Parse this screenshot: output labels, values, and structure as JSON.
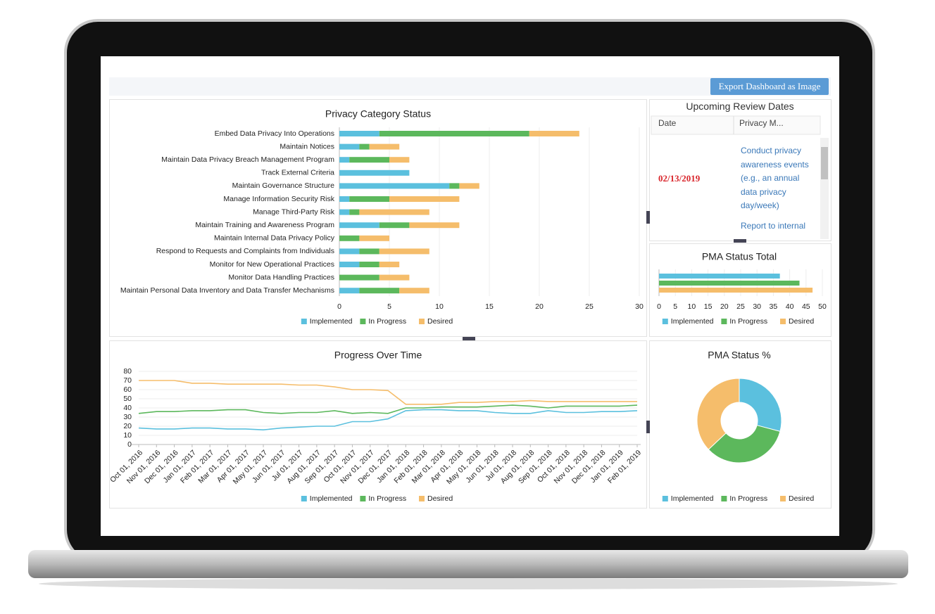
{
  "toolbar": {
    "button": "Export Dashboard as Image"
  },
  "review_table": {
    "title": "Upcoming Review Dates",
    "columns": [
      "Date",
      "Privacy M..."
    ],
    "rows": [
      [
        "02/13/2019",
        [
          "Conduct privacy awareness events (e.g., an annual data privacy day/week)",
          "Report to internal"
        ]
      ]
    ]
  },
  "chart_data": [
    {
      "type": "stacked-hbar",
      "title": "Privacy Category Status",
      "categories": [
        "Embed Data Privacy Into Operations",
        "Maintain Notices",
        "Maintain Data Privacy Breach Management Program",
        "Track External Criteria",
        "Maintain Governance Structure",
        "Manage Information Security Risk",
        "Manage Third-Party Risk",
        "Maintain Training and Awareness Program",
        "Maintain Internal Data Privacy Policy",
        "Respond to Requests and Complaints from Individuals",
        "Monitor for New Operational Practices",
        "Monitor Data Handling Practices",
        "Maintain Personal Data Inventory and Data Transfer Mechanisms"
      ],
      "series": [
        {
          "name": "Implemented",
          "color": "#5bc0de",
          "values": [
            4,
            2,
            1,
            7,
            11,
            1,
            1,
            4,
            0,
            2,
            2,
            0,
            2
          ]
        },
        {
          "name": "In Progress",
          "color": "#5cb85c",
          "values": [
            15,
            1,
            4,
            0,
            1,
            4,
            1,
            3,
            2,
            2,
            2,
            4,
            4
          ]
        },
        {
          "name": "Desired",
          "color": "#f5bd6b",
          "values": [
            5,
            3,
            2,
            0,
            2,
            7,
            7,
            5,
            3,
            5,
            2,
            3,
            3
          ]
        }
      ],
      "xlim": [
        0,
        30
      ],
      "xticks": [
        0,
        5,
        10,
        15,
        20,
        25,
        30
      ],
      "grid": true
    },
    {
      "type": "hbar",
      "title": "PMA Status Total",
      "series": [
        {
          "name": "Implemented",
          "color": "#5bc0de",
          "values": [
            37
          ]
        },
        {
          "name": "In Progress",
          "color": "#5cb85c",
          "values": [
            43
          ]
        },
        {
          "name": "Desired",
          "color": "#f5bd6b",
          "values": [
            47
          ]
        }
      ],
      "xlim": [
        0,
        50
      ],
      "xticks": [
        0,
        5,
        10,
        15,
        20,
        25,
        30,
        35,
        40,
        45,
        50
      ],
      "grid": true
    },
    {
      "type": "line",
      "title": "Progress Over Time",
      "categories": [
        "Oct 01, 2016",
        "Nov 01, 2016",
        "Dec 01, 2016",
        "Jan 01, 2017",
        "Feb 01, 2017",
        "Mar 01, 2017",
        "Apr 01, 2017",
        "May 01, 2017",
        "Jun 01, 2017",
        "Jul 01, 2017",
        "Aug 01, 2017",
        "Sep 01, 2017",
        "Oct 01, 2017",
        "Nov 01, 2017",
        "Dec 01, 2017",
        "Jan 01, 2018",
        "Feb 01, 2018",
        "Mar 01, 2018",
        "Apr 01, 2018",
        "May 01, 2018",
        "Jun 01, 2018",
        "Jul 01, 2018",
        "Aug 01, 2018",
        "Sep 01, 2018",
        "Oct 01, 2018",
        "Nov 01, 2018",
        "Dec 01, 2018",
        "Jan 01, 2019",
        "Feb 01, 2019"
      ],
      "series": [
        {
          "name": "Implemented",
          "color": "#5bc0de",
          "values": [
            18,
            17,
            17,
            18,
            18,
            17,
            17,
            16,
            18,
            19,
            20,
            20,
            25,
            25,
            28,
            37,
            38,
            38,
            37,
            37,
            35,
            34,
            34,
            37,
            35,
            35,
            36,
            36,
            37
          ]
        },
        {
          "name": "In Progress",
          "color": "#5cb85c",
          "values": [
            34,
            36,
            36,
            37,
            37,
            38,
            38,
            35,
            34,
            35,
            35,
            37,
            34,
            35,
            34,
            40,
            40,
            41,
            41,
            41,
            42,
            43,
            42,
            40,
            42,
            42,
            42,
            42,
            43
          ]
        },
        {
          "name": "Desired",
          "color": "#f5bd6b",
          "values": [
            70,
            70,
            70,
            67,
            67,
            66,
            66,
            66,
            66,
            65,
            65,
            63,
            60,
            60,
            59,
            44,
            44,
            44,
            46,
            46,
            47,
            47,
            48,
            47,
            47,
            47,
            47,
            47,
            47
          ]
        }
      ],
      "ylim": [
        0,
        80
      ],
      "yticks": [
        0,
        10,
        20,
        30,
        40,
        50,
        60,
        70,
        80
      ],
      "grid": true
    },
    {
      "type": "donut",
      "title": "PMA Status %",
      "series": [
        {
          "name": "Implemented",
          "color": "#5bc0de",
          "values": [
            37
          ]
        },
        {
          "name": "In Progress",
          "color": "#5cb85c",
          "values": [
            43
          ]
        },
        {
          "name": "Desired",
          "color": "#f5bd6b",
          "values": [
            47
          ]
        }
      ]
    }
  ]
}
